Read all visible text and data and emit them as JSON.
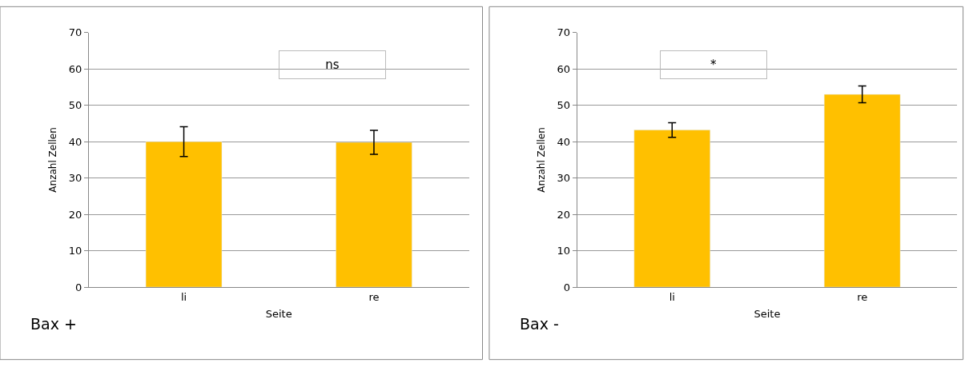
{
  "chart_data": [
    {
      "type": "bar",
      "ylabel": "Anzahl Zellen",
      "xlabel": "Seite",
      "categories": [
        "li",
        "re"
      ],
      "values": [
        40,
        39.8
      ],
      "errors": [
        4.1,
        3.3
      ],
      "color": "#ffc000",
      "ylim": [
        0,
        70
      ],
      "yticks": [
        0,
        10,
        20,
        30,
        40,
        50,
        60,
        70
      ],
      "grid": "y",
      "annotations": [
        "ns",
        "Bax +"
      ]
    },
    {
      "type": "bar",
      "ylabel": "Anzahl Zellen",
      "xlabel": "Seite",
      "categories": [
        "li",
        "re"
      ],
      "values": [
        43.2,
        53
      ],
      "errors": [
        2,
        2.3
      ],
      "color": "#ffc000",
      "ylim": [
        0,
        70
      ],
      "yticks": [
        0,
        10,
        20,
        30,
        40,
        50,
        60,
        70
      ],
      "grid": "y",
      "annotations": [
        "*",
        "Bax -"
      ]
    }
  ]
}
